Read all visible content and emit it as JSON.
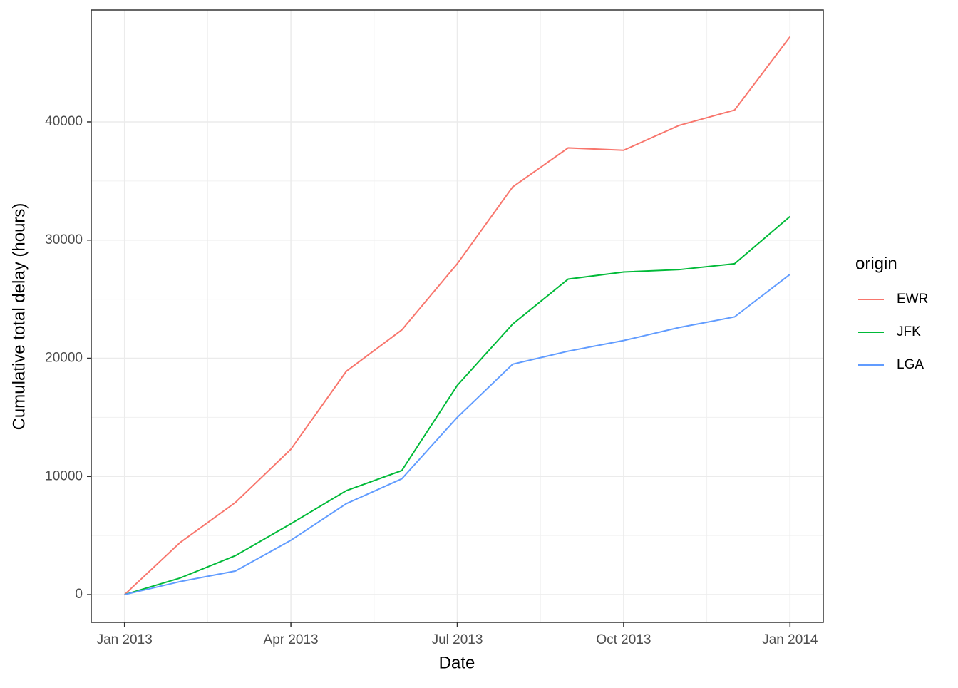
{
  "chart_data": {
    "type": "line",
    "x_label": "Date",
    "y_label": "Cumulative total delay (hours)",
    "legend_title": "origin",
    "x": [
      "2013-01",
      "2013-02",
      "2013-03",
      "2013-04",
      "2013-05",
      "2013-06",
      "2013-07",
      "2013-08",
      "2013-09",
      "2013-10",
      "2013-11",
      "2013-12",
      "2014-01"
    ],
    "series": [
      {
        "name": "EWR",
        "color": "#f8766d",
        "values": [
          0,
          4400,
          7800,
          12300,
          18900,
          22400,
          28000,
          34500,
          37800,
          37600,
          39700,
          41000,
          47200
        ]
      },
      {
        "name": "JFK",
        "color": "#00ba38",
        "values": [
          0,
          1400,
          3300,
          6000,
          8800,
          10500,
          17700,
          22900,
          26700,
          27300,
          27500,
          28000,
          32000
        ]
      },
      {
        "name": "LGA",
        "color": "#619cff",
        "values": [
          0,
          1100,
          2000,
          4600,
          7700,
          9800,
          15000,
          19500,
          20600,
          21500,
          22600,
          23500,
          27100
        ]
      }
    ],
    "xlim": [
      "2013-01",
      "2014-01"
    ],
    "xticks": [
      {
        "value": "2013-01",
        "label": "Jan 2013"
      },
      {
        "value": "2013-04",
        "label": "Apr 2013"
      },
      {
        "value": "2013-07",
        "label": "Jul 2013"
      },
      {
        "value": "2013-10",
        "label": "Oct 2013"
      },
      {
        "value": "2014-01",
        "label": "Jan 2014"
      }
    ],
    "ylim": [
      -2350,
      49470
    ],
    "yticks": [
      0,
      10000,
      20000,
      30000,
      40000
    ],
    "grid": true,
    "legend": "right"
  }
}
